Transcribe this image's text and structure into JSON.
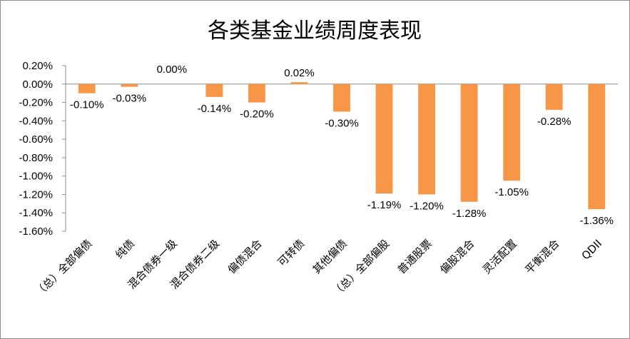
{
  "chart_data": {
    "type": "bar",
    "title": "各类基金业绩周度表现",
    "xlabel": "",
    "ylabel": "",
    "ylim": [
      -0.016,
      0.002
    ],
    "y_ticks": [
      "0.20%",
      "0.00%",
      "-0.20%",
      "-0.40%",
      "-0.60%",
      "-0.80%",
      "-1.00%",
      "-1.20%",
      "-1.40%",
      "-1.60%"
    ],
    "categories": [
      "（总）全部偏债",
      "纯债",
      "混合债券一级",
      "混合债券二级",
      "偏债混合",
      "可转债",
      "其他偏债",
      "（总）全部偏股",
      "普通股票",
      "偏股混合",
      "灵活配置",
      "平衡混合",
      "QDII"
    ],
    "values": [
      -0.001,
      -0.0003,
      0.0,
      -0.0014,
      -0.002,
      0.0002,
      -0.003,
      -0.0119,
      -0.012,
      -0.0128,
      -0.0105,
      -0.0028,
      -0.0136
    ],
    "data_labels": [
      "-0.10%",
      "-0.03%",
      "0.00%",
      "-0.14%",
      "-0.20%",
      "0.02%",
      "-0.30%",
      "-1.19%",
      "-1.20%",
      "-1.28%",
      "-1.05%",
      "-0.28%",
      "-1.36%"
    ],
    "bar_color": "#F79646",
    "grid": false,
    "legend": "none"
  }
}
